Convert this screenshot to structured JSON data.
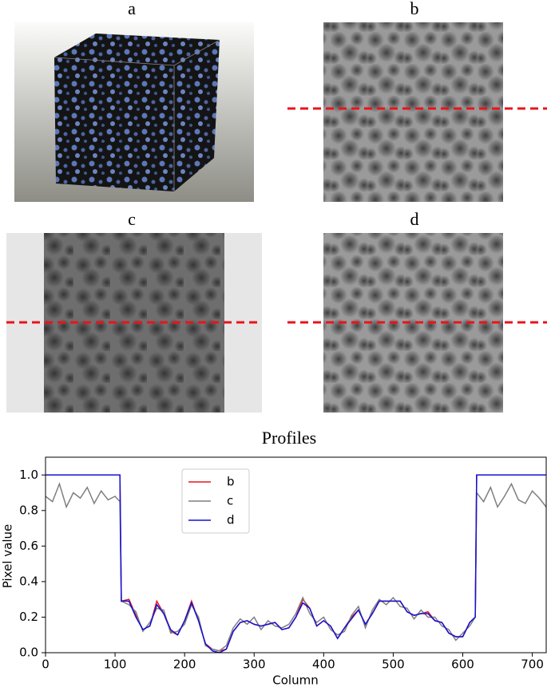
{
  "panels": [
    {
      "label": "a"
    },
    {
      "label": "b"
    },
    {
      "label": "c"
    },
    {
      "label": "d"
    }
  ],
  "chart_data": {
    "type": "line",
    "title": "Profiles",
    "xlabel": "Column",
    "ylabel": "Pixel value",
    "x": [
      0,
      10,
      20,
      30,
      40,
      50,
      60,
      70,
      80,
      90,
      100,
      107,
      109,
      120,
      130,
      140,
      150,
      160,
      170,
      180,
      190,
      200,
      210,
      220,
      230,
      240,
      250,
      260,
      270,
      280,
      290,
      300,
      310,
      320,
      330,
      340,
      350,
      360,
      370,
      380,
      390,
      400,
      410,
      420,
      430,
      440,
      450,
      460,
      470,
      480,
      490,
      500,
      510,
      520,
      530,
      540,
      550,
      560,
      570,
      580,
      590,
      600,
      610,
      618,
      620,
      630,
      640,
      650,
      660,
      670,
      680,
      690,
      700,
      710,
      720
    ],
    "series": [
      {
        "name": "b",
        "color": "#e8141c",
        "values": [
          1,
          1,
          1,
          1,
          1,
          1,
          1,
          1,
          1,
          1,
          1,
          1,
          0.29,
          0.3,
          0.21,
          0.13,
          0.15,
          0.29,
          0.22,
          0.12,
          0.1,
          0.18,
          0.29,
          0.18,
          0.05,
          0.02,
          0.01,
          0.02,
          0.12,
          0.17,
          0.18,
          0.16,
          0.15,
          0.16,
          0.17,
          0.13,
          0.14,
          0.2,
          0.3,
          0.25,
          0.15,
          0.18,
          0.15,
          0.08,
          0.14,
          0.2,
          0.24,
          0.16,
          0.22,
          0.29,
          0.29,
          0.29,
          0.29,
          0.23,
          0.21,
          0.22,
          0.23,
          0.18,
          0.17,
          0.11,
          0.09,
          0.09,
          0.17,
          0.2,
          1,
          1,
          1,
          1,
          1,
          1,
          1,
          1,
          1,
          1,
          1
        ]
      },
      {
        "name": "c",
        "color": "#7f7f7f",
        "values": [
          0.88,
          0.85,
          0.95,
          0.82,
          0.9,
          0.87,
          0.93,
          0.84,
          0.91,
          0.86,
          0.88,
          0.85,
          0.29,
          0.27,
          0.23,
          0.12,
          0.17,
          0.25,
          0.24,
          0.11,
          0.12,
          0.16,
          0.27,
          0.2,
          0.04,
          0.02,
          0.01,
          0.04,
          0.14,
          0.19,
          0.16,
          0.2,
          0.13,
          0.18,
          0.15,
          0.14,
          0.16,
          0.22,
          0.31,
          0.22,
          0.17,
          0.2,
          0.13,
          0.1,
          0.12,
          0.21,
          0.26,
          0.14,
          0.24,
          0.3,
          0.27,
          0.31,
          0.26,
          0.25,
          0.19,
          0.24,
          0.2,
          0.2,
          0.15,
          0.13,
          0.07,
          0.11,
          0.15,
          0.2,
          0.9,
          0.85,
          0.93,
          0.82,
          0.88,
          0.95,
          0.86,
          0.84,
          0.91,
          0.87,
          0.82
        ]
      },
      {
        "name": "d",
        "color": "#1212d4",
        "values": [
          1,
          1,
          1,
          1,
          1,
          1,
          1,
          1,
          1,
          1,
          1,
          1,
          0.29,
          0.29,
          0.2,
          0.13,
          0.15,
          0.27,
          0.22,
          0.13,
          0.1,
          0.18,
          0.28,
          0.18,
          0.05,
          0.01,
          0,
          0.02,
          0.12,
          0.17,
          0.18,
          0.16,
          0.15,
          0.16,
          0.17,
          0.13,
          0.14,
          0.2,
          0.28,
          0.25,
          0.15,
          0.18,
          0.15,
          0.08,
          0.14,
          0.19,
          0.24,
          0.16,
          0.22,
          0.29,
          0.29,
          0.29,
          0.29,
          0.23,
          0.21,
          0.22,
          0.22,
          0.18,
          0.17,
          0.11,
          0.09,
          0.09,
          0.17,
          0.2,
          1,
          1,
          1,
          1,
          1,
          1,
          1,
          1,
          1,
          1,
          1
        ]
      }
    ],
    "xlim": [
      0,
      720
    ],
    "xticks": [
      0,
      100,
      200,
      300,
      400,
      500,
      600,
      700
    ],
    "ylim": [
      0,
      1.1
    ],
    "yticks": [
      {
        "value": 0,
        "label": "0.0"
      },
      0.2,
      0.4,
      0.6,
      0.8,
      {
        "value": 1,
        "label": "1.0"
      }
    ]
  }
}
